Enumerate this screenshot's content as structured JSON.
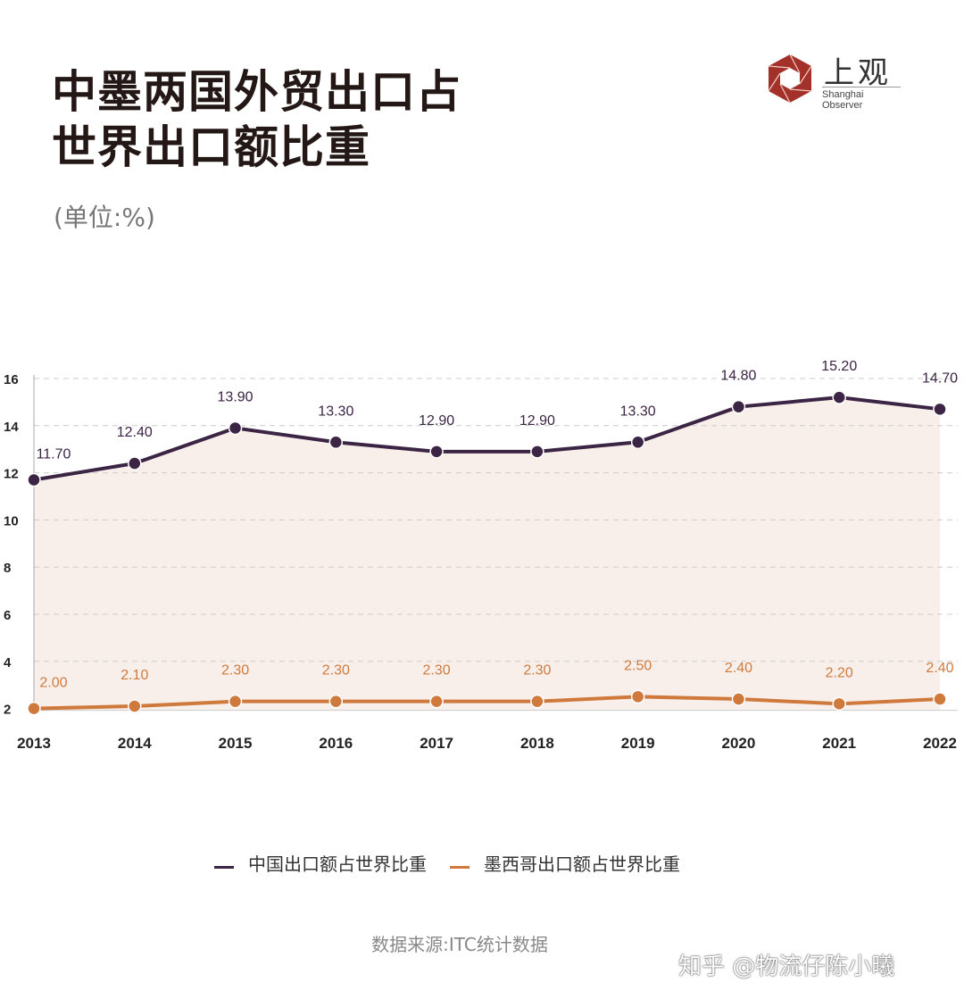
{
  "header": {
    "title_line1": "中墨两国外贸出口占",
    "title_line2": "世界出口额比重",
    "unit": "(单位:%)"
  },
  "logo": {
    "cn": "上观",
    "en": "Shanghai Observer"
  },
  "chart_data": {
    "type": "line",
    "title": "中墨两国外贸出口占世界出口额比重",
    "ylabel": "(单位:%)",
    "categories": [
      "2013",
      "2014",
      "2015",
      "2016",
      "2017",
      "2018",
      "2019",
      "2020",
      "2021",
      "2022"
    ],
    "yticks": [
      2,
      4,
      6,
      8,
      10,
      12,
      14,
      16
    ],
    "ylim": [
      2,
      16
    ],
    "grid": true,
    "legend_position": "bottom",
    "series": [
      {
        "name": "中国出口额占世界比重",
        "color": "#3b2444",
        "values": [
          11.7,
          12.4,
          13.9,
          13.3,
          12.9,
          12.9,
          13.3,
          14.8,
          15.2,
          14.7
        ],
        "labels": [
          "11.70",
          "12.40",
          "13.90",
          "13.30",
          "12.90",
          "12.90",
          "13.30",
          "14.80",
          "15.20",
          "14.70"
        ]
      },
      {
        "name": "墨西哥出口额占世界比重",
        "color": "#cf7a3c",
        "values": [
          2.0,
          2.1,
          2.3,
          2.3,
          2.3,
          2.3,
          2.5,
          2.4,
          2.2,
          2.4
        ],
        "labels": [
          "2.00",
          "2.10",
          "2.30",
          "2.30",
          "2.30",
          "2.30",
          "2.50",
          "2.40",
          "2.20",
          "2.40"
        ]
      }
    ],
    "area_fill": "#f8efeb"
  },
  "source": "数据来源:ITC统计数据",
  "watermark": "知乎 @物流仔陈小曦"
}
